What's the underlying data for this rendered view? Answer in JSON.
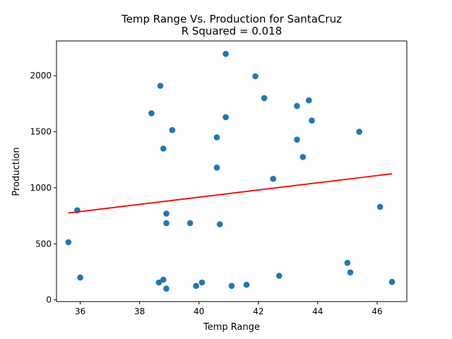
{
  "chart_data": {
    "type": "scatter",
    "title": "Temp Range Vs. Production for SantaCruz",
    "subtitle": "R Squared =  0.018",
    "xlabel": "Temp Range",
    "ylabel": "Production",
    "xlim": [
      35.2,
      47.0
    ],
    "ylim": [
      -15,
      2310
    ],
    "x_ticks": [
      36,
      38,
      40,
      42,
      44,
      46
    ],
    "y_ticks": [
      0,
      500,
      1000,
      1500,
      2000
    ],
    "grid": false,
    "colors": {
      "points": "#1f77b4",
      "regression": "#ff0000"
    },
    "points": [
      {
        "x": 35.6,
        "y": 515
      },
      {
        "x": 35.9,
        "y": 800
      },
      {
        "x": 36.0,
        "y": 200
      },
      {
        "x": 38.4,
        "y": 1665
      },
      {
        "x": 38.7,
        "y": 1910
      },
      {
        "x": 38.65,
        "y": 155
      },
      {
        "x": 38.8,
        "y": 180
      },
      {
        "x": 38.8,
        "y": 1350
      },
      {
        "x": 38.9,
        "y": 770
      },
      {
        "x": 38.9,
        "y": 685
      },
      {
        "x": 38.9,
        "y": 100
      },
      {
        "x": 39.1,
        "y": 1515
      },
      {
        "x": 39.7,
        "y": 685
      },
      {
        "x": 39.9,
        "y": 125
      },
      {
        "x": 40.1,
        "y": 155
      },
      {
        "x": 40.6,
        "y": 1450
      },
      {
        "x": 40.6,
        "y": 1180
      },
      {
        "x": 40.7,
        "y": 675
      },
      {
        "x": 40.9,
        "y": 2195
      },
      {
        "x": 40.9,
        "y": 1630
      },
      {
        "x": 41.1,
        "y": 125
      },
      {
        "x": 41.6,
        "y": 135
      },
      {
        "x": 41.9,
        "y": 1995
      },
      {
        "x": 42.2,
        "y": 1800
      },
      {
        "x": 42.5,
        "y": 1080
      },
      {
        "x": 42.7,
        "y": 215
      },
      {
        "x": 43.3,
        "y": 1730
      },
      {
        "x": 43.3,
        "y": 1430
      },
      {
        "x": 43.5,
        "y": 1275
      },
      {
        "x": 43.7,
        "y": 1780
      },
      {
        "x": 43.8,
        "y": 1600
      },
      {
        "x": 45.0,
        "y": 330
      },
      {
        "x": 45.1,
        "y": 245
      },
      {
        "x": 45.4,
        "y": 1500
      },
      {
        "x": 46.1,
        "y": 830
      },
      {
        "x": 46.5,
        "y": 160
      }
    ],
    "regression_line": {
      "x": [
        35.6,
        46.5
      ],
      "y": [
        775,
        1125
      ]
    }
  }
}
